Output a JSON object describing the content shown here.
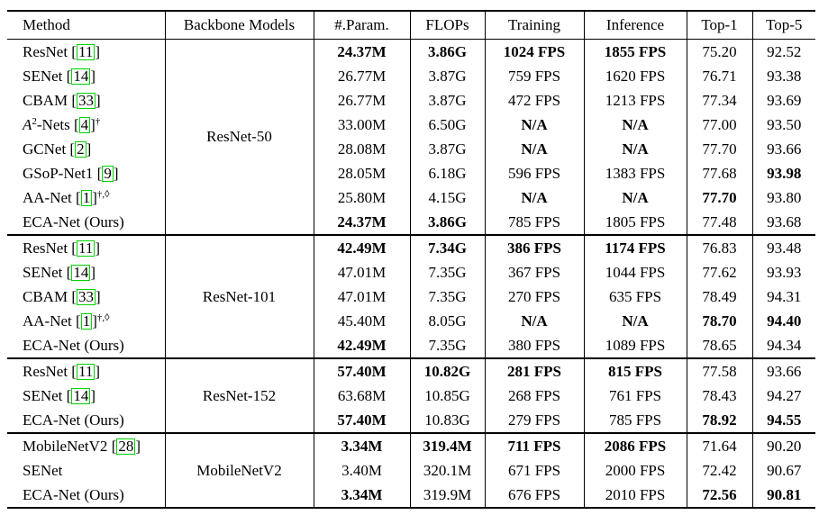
{
  "table": {
    "cite_box_color": "#00d400",
    "columns": [
      "Method",
      "Backbone Models",
      "#.Param.",
      "FLOPs",
      "Training",
      "Inference",
      "Top-1",
      "Top-5"
    ],
    "column_keys": [
      "method",
      "backbone",
      "params",
      "flops",
      "training",
      "inference",
      "top1",
      "top5"
    ],
    "groups": [
      {
        "backbone": "ResNet-50",
        "rows": [
          {
            "method": [
              {
                "t": "text",
                "v": "ResNet "
              },
              {
                "t": "cite",
                "v": "11"
              }
            ],
            "cells": [
              {
                "v": "24.37M",
                "b": true
              },
              {
                "v": "3.86G",
                "b": true
              },
              {
                "v": "1024 FPS",
                "b": true
              },
              {
                "v": "1855 FPS",
                "b": true
              },
              {
                "v": "75.20",
                "b": false
              },
              {
                "v": "92.52",
                "b": false
              }
            ]
          },
          {
            "method": [
              {
                "t": "text",
                "v": "SENet "
              },
              {
                "t": "cite",
                "v": "14"
              }
            ],
            "cells": [
              {
                "v": "26.77M",
                "b": false
              },
              {
                "v": "3.87G",
                "b": false
              },
              {
                "v": "759 FPS",
                "b": false
              },
              {
                "v": "1620 FPS",
                "b": false
              },
              {
                "v": "76.71",
                "b": false
              },
              {
                "v": "93.38",
                "b": false
              }
            ]
          },
          {
            "method": [
              {
                "t": "text",
                "v": "CBAM "
              },
              {
                "t": "cite",
                "v": "33"
              }
            ],
            "cells": [
              {
                "v": "26.77M",
                "b": false
              },
              {
                "v": "3.87G",
                "b": false
              },
              {
                "v": "472 FPS",
                "b": false
              },
              {
                "v": "1213 FPS",
                "b": false
              },
              {
                "v": "77.34",
                "b": false
              },
              {
                "v": "93.69",
                "b": false
              }
            ]
          },
          {
            "method": [
              {
                "t": "itext",
                "v": "A"
              },
              {
                "t": "sup",
                "v": "2"
              },
              {
                "t": "text",
                "v": "-Nets "
              },
              {
                "t": "cite",
                "v": "4"
              },
              {
                "t": "sup",
                "v": "†"
              }
            ],
            "cells": [
              {
                "v": "33.00M",
                "b": false
              },
              {
                "v": "6.50G",
                "b": false
              },
              {
                "v": "N/A",
                "b": true
              },
              {
                "v": "N/A",
                "b": true
              },
              {
                "v": "77.00",
                "b": false
              },
              {
                "v": "93.50",
                "b": false
              }
            ]
          },
          {
            "method": [
              {
                "t": "text",
                "v": "GCNet "
              },
              {
                "t": "cite",
                "v": "2"
              }
            ],
            "cells": [
              {
                "v": "28.08M",
                "b": false
              },
              {
                "v": "3.87G",
                "b": false
              },
              {
                "v": "N/A",
                "b": true
              },
              {
                "v": "N/A",
                "b": true
              },
              {
                "v": "77.70",
                "b": false
              },
              {
                "v": "93.66",
                "b": false
              }
            ]
          },
          {
            "method": [
              {
                "t": "text",
                "v": "GSoP-Net1 "
              },
              {
                "t": "cite",
                "v": "9"
              }
            ],
            "cells": [
              {
                "v": "28.05M",
                "b": false
              },
              {
                "v": "6.18G",
                "b": false
              },
              {
                "v": "596 FPS",
                "b": false
              },
              {
                "v": "1383 FPS",
                "b": false
              },
              {
                "v": "77.68",
                "b": false
              },
              {
                "v": "93.98",
                "b": true
              }
            ]
          },
          {
            "method": [
              {
                "t": "text",
                "v": "AA-Net "
              },
              {
                "t": "cite",
                "v": "1"
              },
              {
                "t": "sup",
                "v": "†,◊"
              }
            ],
            "cells": [
              {
                "v": "25.80M",
                "b": false
              },
              {
                "v": "4.15G",
                "b": false
              },
              {
                "v": "N/A",
                "b": true
              },
              {
                "v": "N/A",
                "b": true
              },
              {
                "v": "77.70",
                "b": true
              },
              {
                "v": "93.80",
                "b": false
              }
            ]
          },
          {
            "method": [
              {
                "t": "text",
                "v": "ECA-Net (Ours)"
              }
            ],
            "cells": [
              {
                "v": "24.37M",
                "b": true
              },
              {
                "v": "3.86G",
                "b": true
              },
              {
                "v": "785 FPS",
                "b": false
              },
              {
                "v": "1805 FPS",
                "b": false
              },
              {
                "v": "77.48",
                "b": false
              },
              {
                "v": "93.68",
                "b": false
              }
            ]
          }
        ]
      },
      {
        "backbone": "ResNet-101",
        "rows": [
          {
            "method": [
              {
                "t": "text",
                "v": "ResNet "
              },
              {
                "t": "cite",
                "v": "11"
              }
            ],
            "cells": [
              {
                "v": "42.49M",
                "b": true
              },
              {
                "v": "7.34G",
                "b": true
              },
              {
                "v": "386 FPS",
                "b": true
              },
              {
                "v": "1174 FPS",
                "b": true
              },
              {
                "v": "76.83",
                "b": false
              },
              {
                "v": "93.48",
                "b": false
              }
            ]
          },
          {
            "method": [
              {
                "t": "text",
                "v": "SENet "
              },
              {
                "t": "cite",
                "v": "14"
              }
            ],
            "cells": [
              {
                "v": "47.01M",
                "b": false
              },
              {
                "v": "7.35G",
                "b": false
              },
              {
                "v": "367 FPS",
                "b": false
              },
              {
                "v": "1044 FPS",
                "b": false
              },
              {
                "v": "77.62",
                "b": false
              },
              {
                "v": "93.93",
                "b": false
              }
            ]
          },
          {
            "method": [
              {
                "t": "text",
                "v": "CBAM "
              },
              {
                "t": "cite",
                "v": "33"
              }
            ],
            "cells": [
              {
                "v": "47.01M",
                "b": false
              },
              {
                "v": "7.35G",
                "b": false
              },
              {
                "v": "270 FPS",
                "b": false
              },
              {
                "v": "635 FPS",
                "b": false
              },
              {
                "v": "78.49",
                "b": false
              },
              {
                "v": "94.31",
                "b": false
              }
            ]
          },
          {
            "method": [
              {
                "t": "text",
                "v": "AA-Net "
              },
              {
                "t": "cite",
                "v": "1"
              },
              {
                "t": "sup",
                "v": "†,◊"
              }
            ],
            "cells": [
              {
                "v": "45.40M",
                "b": false
              },
              {
                "v": "8.05G",
                "b": false
              },
              {
                "v": "N/A",
                "b": true
              },
              {
                "v": "N/A",
                "b": true
              },
              {
                "v": "78.70",
                "b": true
              },
              {
                "v": "94.40",
                "b": true
              }
            ]
          },
          {
            "method": [
              {
                "t": "text",
                "v": "ECA-Net (Ours)"
              }
            ],
            "cells": [
              {
                "v": "42.49M",
                "b": true
              },
              {
                "v": "7.35G",
                "b": false
              },
              {
                "v": "380 FPS",
                "b": false
              },
              {
                "v": "1089 FPS",
                "b": false
              },
              {
                "v": "78.65",
                "b": false
              },
              {
                "v": "94.34",
                "b": false
              }
            ]
          }
        ]
      },
      {
        "backbone": "ResNet-152",
        "rows": [
          {
            "method": [
              {
                "t": "text",
                "v": "ResNet "
              },
              {
                "t": "cite",
                "v": "11"
              }
            ],
            "cells": [
              {
                "v": "57.40M",
                "b": true
              },
              {
                "v": "10.82G",
                "b": true
              },
              {
                "v": "281 FPS",
                "b": true
              },
              {
                "v": "815 FPS",
                "b": true
              },
              {
                "v": "77.58",
                "b": false
              },
              {
                "v": "93.66",
                "b": false
              }
            ]
          },
          {
            "method": [
              {
                "t": "text",
                "v": "SENet "
              },
              {
                "t": "cite",
                "v": "14"
              }
            ],
            "cells": [
              {
                "v": "63.68M",
                "b": false
              },
              {
                "v": "10.85G",
                "b": false
              },
              {
                "v": "268 FPS",
                "b": false
              },
              {
                "v": "761 FPS",
                "b": false
              },
              {
                "v": "78.43",
                "b": false
              },
              {
                "v": "94.27",
                "b": false
              }
            ]
          },
          {
            "method": [
              {
                "t": "text",
                "v": "ECA-Net (Ours)"
              }
            ],
            "cells": [
              {
                "v": "57.40M",
                "b": true
              },
              {
                "v": "10.83G",
                "b": false
              },
              {
                "v": "279 FPS",
                "b": false
              },
              {
                "v": "785 FPS",
                "b": false
              },
              {
                "v": "78.92",
                "b": true
              },
              {
                "v": "94.55",
                "b": true
              }
            ]
          }
        ]
      },
      {
        "backbone": "MobileNetV2",
        "rows": [
          {
            "method": [
              {
                "t": "text",
                "v": "MobileNetV2 "
              },
              {
                "t": "cite",
                "v": "28"
              }
            ],
            "cells": [
              {
                "v": "3.34M",
                "b": true
              },
              {
                "v": "319.4M",
                "b": true
              },
              {
                "v": "711 FPS",
                "b": true
              },
              {
                "v": "2086 FPS",
                "b": true
              },
              {
                "v": "71.64",
                "b": false
              },
              {
                "v": "90.20",
                "b": false
              }
            ]
          },
          {
            "method": [
              {
                "t": "text",
                "v": "SENet"
              }
            ],
            "cells": [
              {
                "v": "3.40M",
                "b": false
              },
              {
                "v": "320.1M",
                "b": false
              },
              {
                "v": "671 FPS",
                "b": false
              },
              {
                "v": "2000 FPS",
                "b": false
              },
              {
                "v": "72.42",
                "b": false
              },
              {
                "v": "90.67",
                "b": false
              }
            ]
          },
          {
            "method": [
              {
                "t": "text",
                "v": "ECA-Net (Ours)"
              }
            ],
            "cells": [
              {
                "v": "3.34M",
                "b": true
              },
              {
                "v": "319.9M",
                "b": false
              },
              {
                "v": "676 FPS",
                "b": false
              },
              {
                "v": "2010 FPS",
                "b": false
              },
              {
                "v": "72.56",
                "b": true
              },
              {
                "v": "90.81",
                "b": true
              }
            ]
          }
        ]
      }
    ]
  }
}
